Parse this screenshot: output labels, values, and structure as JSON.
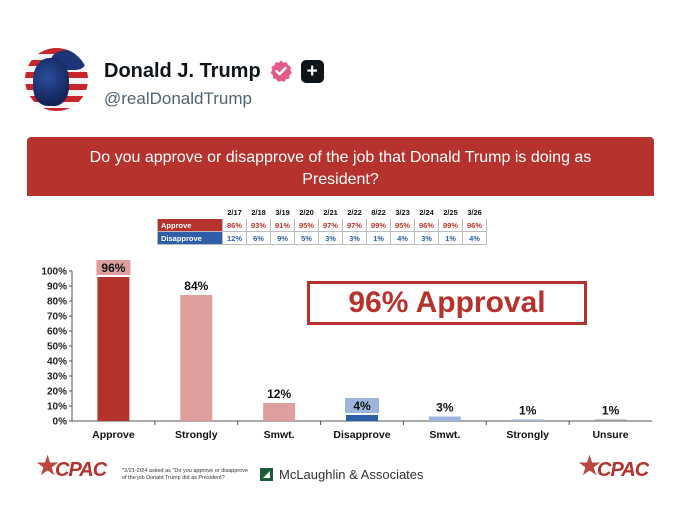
{
  "profile": {
    "name": "Donald J. Trump",
    "handle": "@realDonaldTrump"
  },
  "slide": {
    "question": "Do you approve or disapprove of the job that Donald Trump is doing as President?",
    "callout": "96% Approval",
    "footnote": "*2/21-2/24 asked as \"Do you approve or disapprove of the job Donald Trump did as President?",
    "pollster": "McLaughlin & Associates",
    "logo_text": "CPAC"
  },
  "table": {
    "dates": [
      "2/17",
      "2/18",
      "3/19",
      "2/20",
      "2/21",
      "2/22",
      "8/22",
      "3/23",
      "2/24",
      "2/25",
      "3/26"
    ],
    "rows": [
      {
        "label": "Approve",
        "values": [
          "86%",
          "93%",
          "91%",
          "95%",
          "97%",
          "97%",
          "99%",
          "95%",
          "96%",
          "99%",
          "96%"
        ]
      },
      {
        "label": "Disapprove",
        "values": [
          "12%",
          "6%",
          "9%",
          "5%",
          "3%",
          "3%",
          "1%",
          "4%",
          "3%",
          "1%",
          "4%"
        ]
      }
    ]
  },
  "chart_data": {
    "type": "bar",
    "categories": [
      "Approve",
      "Strongly",
      "Smwt.",
      "Disapprove",
      "Smwt.",
      "Strongly",
      "Unsure"
    ],
    "values": [
      96,
      84,
      12,
      4,
      3,
      1,
      1
    ],
    "labels": [
      "96%",
      "84%",
      "12%",
      "4%",
      "3%",
      "1%",
      "1%"
    ],
    "colors": [
      "#b6322d",
      "#de9e9e",
      "#de9e9e",
      "#2f5ea8",
      "#9db5dc",
      "#9db5dc",
      "#9a9a9a"
    ],
    "yticks": [
      "0%",
      "10%",
      "20%",
      "30%",
      "40%",
      "50%",
      "60%",
      "70%",
      "80%",
      "90%",
      "100%"
    ],
    "ylim": [
      0,
      100
    ],
    "title": "",
    "xlabel": "",
    "ylabel": ""
  }
}
